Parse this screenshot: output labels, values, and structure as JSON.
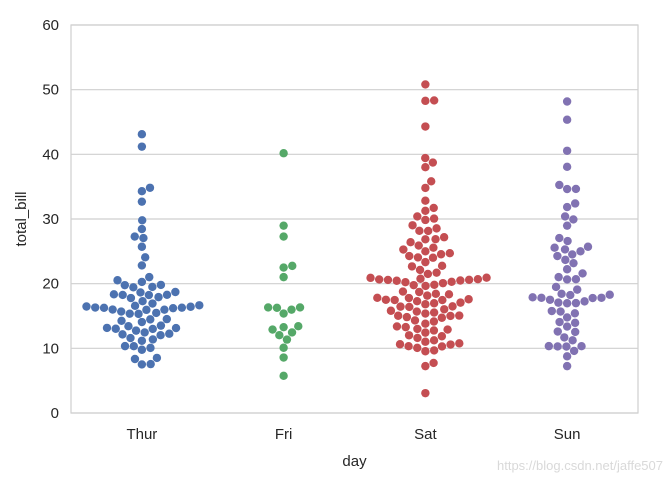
{
  "watermark": "https://blog.csdn.net/jaffe507",
  "chart_data": {
    "type": "scatter",
    "subtype": "swarm",
    "title": "",
    "xlabel": "day",
    "ylabel": "total_bill",
    "ylim": [
      0,
      60
    ],
    "yticks": [
      0,
      10,
      20,
      30,
      40,
      50,
      60
    ],
    "grid": true,
    "categories": [
      "Thur",
      "Fri",
      "Sat",
      "Sun"
    ],
    "series": [
      {
        "category": "Thur",
        "color": "#4C72B0",
        "values": [
          7.51,
          7.56,
          8.35,
          8.52,
          9.78,
          10.07,
          10.33,
          10.34,
          11.17,
          11.38,
          11.59,
          12.03,
          12.16,
          12.26,
          12.46,
          12.74,
          13.0,
          13.03,
          13.13,
          13.16,
          13.42,
          13.51,
          14.07,
          14.26,
          14.48,
          14.52,
          15.33,
          15.36,
          15.48,
          15.69,
          15.95,
          15.98,
          16.0,
          16.21,
          16.27,
          16.29,
          16.31,
          16.43,
          16.47,
          16.58,
          16.66,
          16.93,
          17.29,
          17.78,
          17.92,
          18.24,
          18.26,
          18.28,
          18.35,
          18.64,
          18.71,
          19.44,
          19.49,
          19.77,
          19.81,
          20.27,
          20.53,
          21.01,
          22.82,
          24.08,
          25.71,
          27.05,
          27.28,
          28.44,
          29.8,
          32.68,
          34.3,
          34.83,
          41.19,
          43.11
        ]
      },
      {
        "category": "Fri",
        "color": "#55A868",
        "values": [
          5.75,
          8.58,
          10.09,
          11.35,
          12.03,
          12.46,
          12.9,
          13.27,
          13.42,
          15.38,
          15.98,
          16.27,
          16.32,
          16.32,
          21.01,
          22.49,
          22.75,
          27.28,
          28.97,
          40.17
        ]
      },
      {
        "category": "Sat",
        "color": "#C44E52",
        "values": [
          3.07,
          7.25,
          7.74,
          9.55,
          9.68,
          10.07,
          10.29,
          10.33,
          10.59,
          10.63,
          10.77,
          11.02,
          11.24,
          11.61,
          11.87,
          12.02,
          12.43,
          12.76,
          12.9,
          13.0,
          13.28,
          13.39,
          13.81,
          14.15,
          14.31,
          14.73,
          14.83,
          15.01,
          15.04,
          15.06,
          15.38,
          15.53,
          15.69,
          15.81,
          16.04,
          16.4,
          16.45,
          16.49,
          16.82,
          16.97,
          17.07,
          17.29,
          17.46,
          17.47,
          17.51,
          17.59,
          17.78,
          17.81,
          18.15,
          18.35,
          18.43,
          18.71,
          18.78,
          19.65,
          19.77,
          19.82,
          20.08,
          20.23,
          20.29,
          20.45,
          20.49,
          20.58,
          20.6,
          20.65,
          20.69,
          20.76,
          20.9,
          20.92,
          21.5,
          21.7,
          22.12,
          22.67,
          22.76,
          23.33,
          24.01,
          24.06,
          24.27,
          24.55,
          24.71,
          25.0,
          25.28,
          25.56,
          25.89,
          26.41,
          26.86,
          26.88,
          27.18,
          28.15,
          28.17,
          28.55,
          29.03,
          29.85,
          30.06,
          30.4,
          31.27,
          31.71,
          32.83,
          34.81,
          35.83,
          38.01,
          38.73,
          39.42,
          44.3,
          48.27,
          48.33,
          50.81
        ]
      },
      {
        "category": "Sun",
        "color": "#8172B2",
        "values": [
          7.25,
          8.77,
          9.6,
          10.27,
          10.29,
          10.33,
          10.34,
          11.24,
          11.69,
          12.54,
          12.6,
          13.37,
          13.94,
          14.07,
          14.78,
          15.42,
          15.69,
          15.77,
          16.97,
          16.99,
          17.07,
          17.26,
          17.51,
          17.78,
          17.81,
          17.82,
          17.89,
          18.24,
          18.29,
          18.43,
          19.08,
          19.49,
          20.65,
          20.69,
          21.01,
          21.58,
          22.23,
          23.17,
          23.68,
          24.27,
          24.52,
          25.0,
          25.29,
          25.56,
          25.71,
          26.59,
          27.05,
          28.97,
          29.93,
          30.4,
          31.85,
          32.4,
          34.63,
          34.65,
          35.26,
          38.07,
          40.55,
          45.35,
          48.17
        ]
      }
    ]
  }
}
